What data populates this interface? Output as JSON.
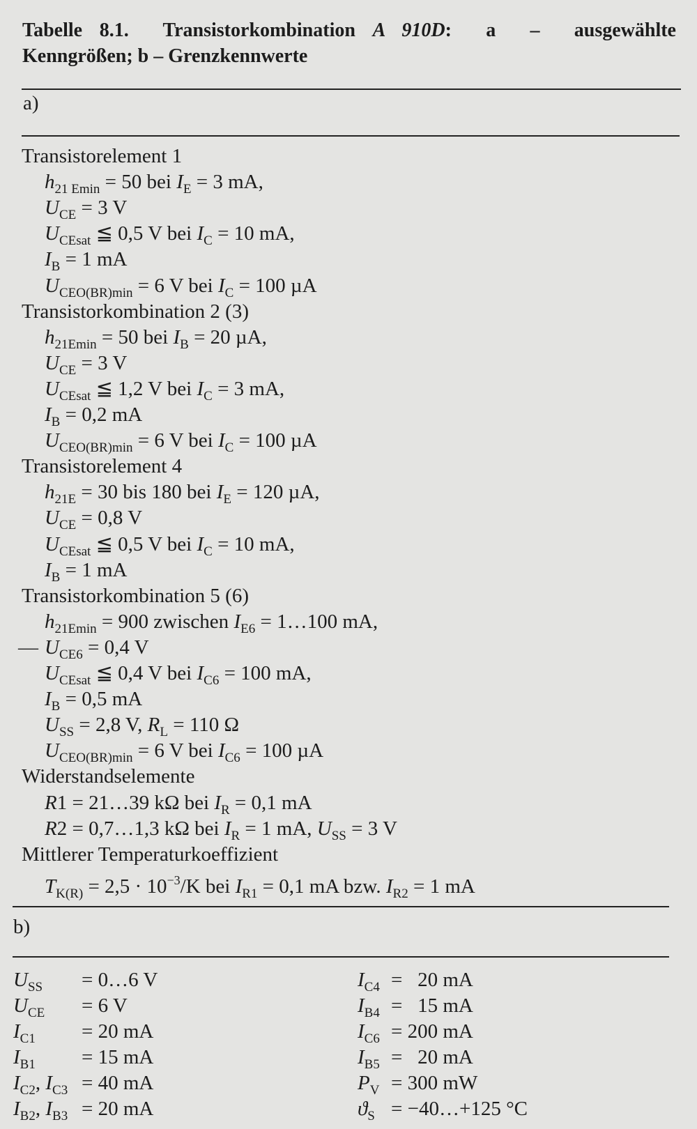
{
  "title": {
    "line1": [
      [
        "b",
        "Tabelle 8.1.  Transistorkombination "
      ],
      [
        "bi",
        "A 910D"
      ],
      [
        "b",
        ":  a  –  ausgewählte"
      ]
    ],
    "line2": [
      [
        "b",
        "Kenngrößen; b – Grenzkennwerte"
      ]
    ]
  },
  "section_a": {
    "label": "a)",
    "lines": [
      {
        "h": true,
        "segs": [
          [
            "",
            "Transistorelement 1"
          ]
        ]
      },
      {
        "segs": [
          [
            "i",
            "h"
          ],
          [
            "sub",
            "21 Emin"
          ],
          [
            "",
            " = 50 bei "
          ],
          [
            "i",
            "I"
          ],
          [
            "sub",
            "E"
          ],
          [
            "",
            " = 3 mA,"
          ]
        ]
      },
      {
        "segs": [
          [
            "i",
            "U"
          ],
          [
            "sub",
            "CE"
          ],
          [
            "",
            " = 3 V"
          ]
        ]
      },
      {
        "segs": [
          [
            "i",
            "U"
          ],
          [
            "sub",
            "CEsat"
          ],
          [
            "",
            " ≦ 0,5 V bei "
          ],
          [
            "i",
            "I"
          ],
          [
            "sub",
            "C"
          ],
          [
            "",
            " = 10 mA,"
          ]
        ]
      },
      {
        "segs": [
          [
            "i",
            "I"
          ],
          [
            "sub",
            "B"
          ],
          [
            "",
            " = 1 mA"
          ]
        ]
      },
      {
        "segs": [
          [
            "i",
            "U"
          ],
          [
            "sub",
            "CEO(BR)min"
          ],
          [
            "",
            " = 6 V bei "
          ],
          [
            "i",
            "I"
          ],
          [
            "sub",
            "C"
          ],
          [
            "",
            " = 100 µA"
          ]
        ]
      },
      {
        "h": true,
        "segs": [
          [
            "",
            "Transistorkombination 2 (3)"
          ]
        ]
      },
      {
        "segs": [
          [
            "i",
            "h"
          ],
          [
            "sub",
            "21Emin"
          ],
          [
            "",
            " = 50 bei "
          ],
          [
            "i",
            "I"
          ],
          [
            "sub",
            "B"
          ],
          [
            "",
            " = 20 µA,"
          ]
        ]
      },
      {
        "segs": [
          [
            "i",
            "U"
          ],
          [
            "sub",
            "CE"
          ],
          [
            "",
            " = 3 V"
          ]
        ]
      },
      {
        "segs": [
          [
            "i",
            "U"
          ],
          [
            "sub",
            "CEsat"
          ],
          [
            "",
            " ≦ 1,2 V bei "
          ],
          [
            "i",
            "I"
          ],
          [
            "sub",
            "C"
          ],
          [
            "",
            " = 3 mA,"
          ]
        ]
      },
      {
        "segs": [
          [
            "i",
            "I"
          ],
          [
            "sub",
            "B"
          ],
          [
            "",
            " = 0,2 mA"
          ]
        ]
      },
      {
        "segs": [
          [
            "i",
            "U"
          ],
          [
            "sub",
            "CEO(BR)min"
          ],
          [
            "",
            " = 6 V bei "
          ],
          [
            "i",
            "I"
          ],
          [
            "sub",
            "C"
          ],
          [
            "",
            " = 100 µA"
          ]
        ]
      },
      {
        "h": true,
        "segs": [
          [
            "",
            "Transistorelement 4"
          ]
        ]
      },
      {
        "segs": [
          [
            "i",
            "h"
          ],
          [
            "sub",
            "21E"
          ],
          [
            "",
            " = 30 bis 180 bei "
          ],
          [
            "i",
            "I"
          ],
          [
            "sub",
            "E"
          ],
          [
            "",
            " = 120 µA,"
          ]
        ]
      },
      {
        "segs": [
          [
            "i",
            "U"
          ],
          [
            "sub",
            "CE"
          ],
          [
            "",
            " = 0,8 V"
          ]
        ]
      },
      {
        "segs": [
          [
            "i",
            "U"
          ],
          [
            "sub",
            "CEsat"
          ],
          [
            "",
            " ≦ 0,5 V bei "
          ],
          [
            "i",
            "I"
          ],
          [
            "sub",
            "C"
          ],
          [
            "",
            " = 10 mA,"
          ]
        ]
      },
      {
        "segs": [
          [
            "i",
            "I"
          ],
          [
            "sub",
            "B"
          ],
          [
            "",
            " = 1 mA"
          ]
        ]
      },
      {
        "h": true,
        "segs": [
          [
            "",
            "Transistorkombination 5 (6)"
          ]
        ]
      },
      {
        "segs": [
          [
            "i",
            "h"
          ],
          [
            "sub",
            "21Emin"
          ],
          [
            "",
            " = 900 zwischen "
          ],
          [
            "i",
            "I"
          ],
          [
            "sub",
            "E6"
          ],
          [
            "",
            " = 1…100 mA,"
          ]
        ]
      },
      {
        "segs": [
          [
            "dash",
            "—"
          ],
          [
            "i",
            "U"
          ],
          [
            "sub",
            "CE6"
          ],
          [
            "",
            " = 0,4 V"
          ]
        ]
      },
      {
        "segs": [
          [
            "i",
            "U"
          ],
          [
            "sub",
            "CEsat"
          ],
          [
            "",
            " ≦ 0,4 V bei "
          ],
          [
            "i",
            "I"
          ],
          [
            "sub",
            "C6"
          ],
          [
            "",
            " = 100 mA,"
          ]
        ]
      },
      {
        "segs": [
          [
            "i",
            "I"
          ],
          [
            "sub",
            "B"
          ],
          [
            "",
            " = 0,5 mA"
          ]
        ]
      },
      {
        "segs": [
          [
            "i",
            "U"
          ],
          [
            "sub",
            "SS"
          ],
          [
            "",
            " = 2,8 V, "
          ],
          [
            "i",
            "R"
          ],
          [
            "sub",
            "L"
          ],
          [
            "",
            " = 110 Ω"
          ]
        ]
      },
      {
        "segs": [
          [
            "i",
            "U"
          ],
          [
            "sub",
            "CEO(BR)min"
          ],
          [
            "",
            " = 6 V bei "
          ],
          [
            "i",
            "I"
          ],
          [
            "sub",
            "C6"
          ],
          [
            "",
            " = 100 µA"
          ]
        ]
      },
      {
        "h": true,
        "segs": [
          [
            "",
            "Widerstandselemente"
          ]
        ]
      },
      {
        "segs": [
          [
            "i",
            "R"
          ],
          [
            "",
            "1 = 21…39 kΩ bei "
          ],
          [
            "i",
            "I"
          ],
          [
            "sub",
            "R"
          ],
          [
            "",
            " = 0,1 mA"
          ]
        ]
      },
      {
        "segs": [
          [
            "i",
            "R"
          ],
          [
            "",
            "2 = 0,7…1,3 kΩ bei "
          ],
          [
            "i",
            "I"
          ],
          [
            "sub",
            "R"
          ],
          [
            "",
            " = 1 mA, "
          ],
          [
            "i",
            "U"
          ],
          [
            "sub",
            "SS"
          ],
          [
            "",
            " = 3 V"
          ]
        ]
      },
      {
        "h": true,
        "segs": [
          [
            "",
            "Mittlerer Temperaturkoeffizient"
          ]
        ]
      },
      {
        "segs": [
          [
            "i",
            "T"
          ],
          [
            "sub",
            "K(R)"
          ],
          [
            "",
            " = 2,5 · 10"
          ],
          [
            "sup",
            "−3"
          ],
          [
            "",
            "/K bei "
          ],
          [
            "i",
            "I"
          ],
          [
            "sub",
            "R1"
          ],
          [
            "",
            " = 0,1 mA bzw. "
          ],
          [
            "i",
            "I"
          ],
          [
            "sub",
            "R2"
          ],
          [
            "",
            " = 1 mA"
          ]
        ]
      }
    ]
  },
  "section_b": {
    "label": "b)",
    "left": [
      {
        "label": [
          [
            "i",
            "U"
          ],
          [
            "sub",
            "SS"
          ]
        ],
        "value": "= 0…6 V"
      },
      {
        "label": [
          [
            "i",
            "U"
          ],
          [
            "sub",
            "CE"
          ]
        ],
        "value": "= 6 V"
      },
      {
        "label": [
          [
            "i",
            "I"
          ],
          [
            "sub",
            "C1"
          ]
        ],
        "value": "= 20 mA"
      },
      {
        "label": [
          [
            "i",
            "I"
          ],
          [
            "sub",
            "B1"
          ]
        ],
        "value": "= 15 mA"
      },
      {
        "label": [
          [
            "i",
            "I"
          ],
          [
            "sub",
            "C2"
          ],
          [
            "",
            ", "
          ],
          [
            "i",
            "I"
          ],
          [
            "sub",
            "C3"
          ]
        ],
        "value": "= 40 mA"
      },
      {
        "label": [
          [
            "i",
            "I"
          ],
          [
            "sub",
            "B2"
          ],
          [
            "",
            ", "
          ],
          [
            "i",
            "I"
          ],
          [
            "sub",
            "B3"
          ]
        ],
        "value": "= 20 mA"
      }
    ],
    "right": [
      {
        "label": [
          [
            "i",
            "I"
          ],
          [
            "sub",
            "C4"
          ]
        ],
        "value": "=   20 mA"
      },
      {
        "label": [
          [
            "i",
            "I"
          ],
          [
            "sub",
            "B4"
          ]
        ],
        "value": "=   15 mA"
      },
      {
        "label": [
          [
            "i",
            "I"
          ],
          [
            "sub",
            "C6"
          ]
        ],
        "value": "= 200 mA"
      },
      {
        "label": [
          [
            "i",
            "I"
          ],
          [
            "sub",
            "B5"
          ]
        ],
        "value": "=   20 mA"
      },
      {
        "label": [
          [
            "i",
            "P"
          ],
          [
            "sub",
            "V"
          ]
        ],
        "value": "= 300 mW"
      },
      {
        "label": [
          [
            "i",
            "ϑ"
          ],
          [
            "sub",
            "S"
          ]
        ],
        "value": "= −40…+125 °C"
      }
    ]
  }
}
